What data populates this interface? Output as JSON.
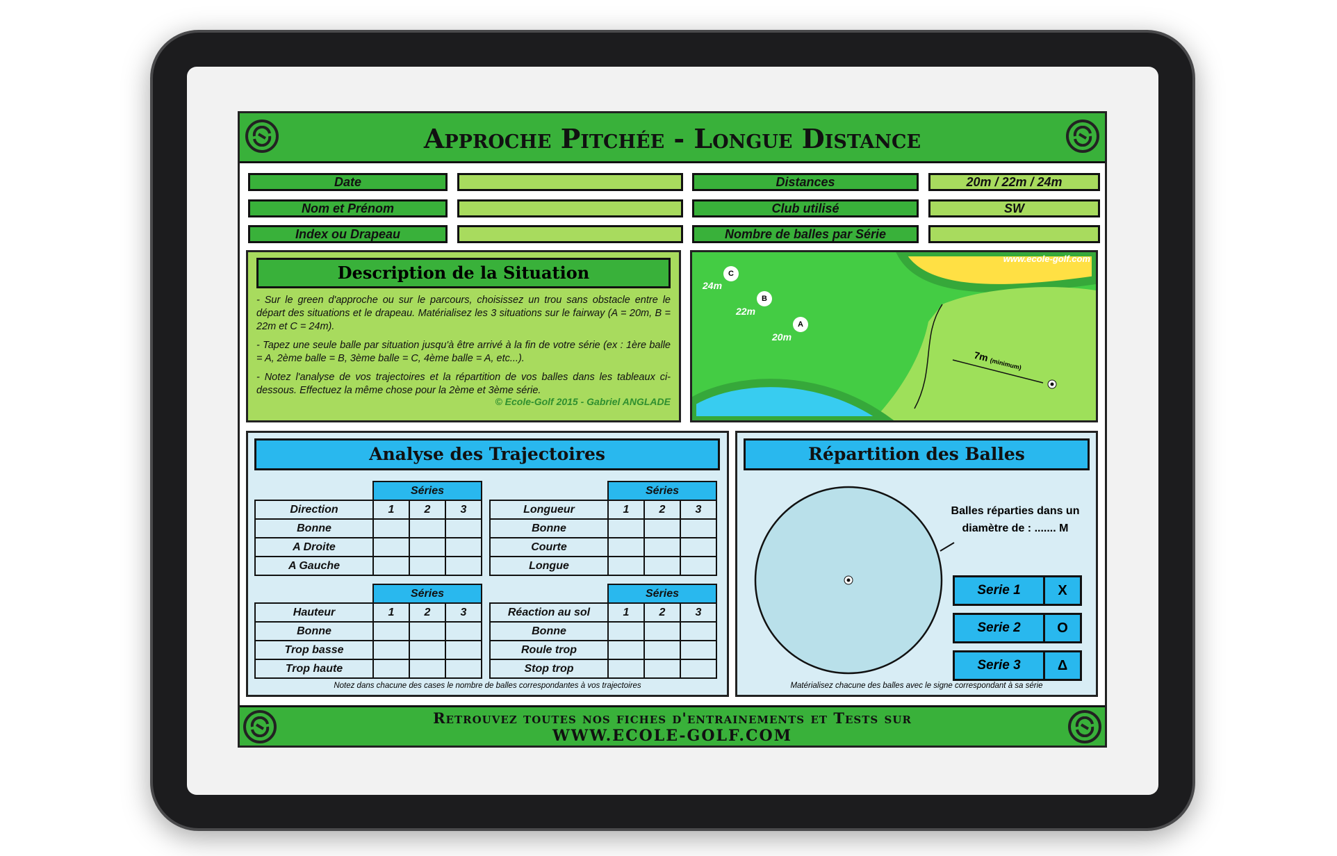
{
  "header": {
    "title": "Approche Pitchée - Longue Distance"
  },
  "info": [
    {
      "label": "Date",
      "value": "",
      "label2": "Distances",
      "value2": "20m / 22m / 24m"
    },
    {
      "label": "Nom et Prénom",
      "value": "",
      "label2": "Club utilisé",
      "value2": "SW"
    },
    {
      "label": "Index ou Drapeau",
      "value": "",
      "label2": "Nombre de balles par Série",
      "value2": ""
    }
  ],
  "description": {
    "title": "Description de la Situation",
    "paragraphs": [
      "- Sur le green d'approche ou sur le parcours, choisissez un trou sans obstacle entre le départ des situations et le drapeau. Matérialisez les 3 situations sur le fairway (A = 20m, B = 22m et C = 24m).",
      "- Tapez une seule balle par situation jusqu'à être arrivé à la fin de votre série (ex : 1ère balle = A, 2ème balle = B, 3ème balle = C, 4ème balle = A, etc...).",
      "- Notez l'analyse de vos trajectoires et la répartition de vos balles dans les tableaux ci-dessous. Effectuez la même chose pour la 2ème et 3ème série."
    ],
    "copyright": "© Ecole-Golf 2015 - Gabriel ANGLADE"
  },
  "map": {
    "watermark": "www.ecole-golf.com",
    "points": [
      {
        "letter": "C",
        "dist": "24m"
      },
      {
        "letter": "B",
        "dist": "22m"
      },
      {
        "letter": "A",
        "dist": "20m"
      }
    ],
    "distance": "7m",
    "distance_note": "(minimum)"
  },
  "analyse": {
    "title": "Analyse des Trajectoires",
    "series_label": "Séries",
    "cols": [
      "1",
      "2",
      "3"
    ],
    "tables": [
      {
        "header": "Direction",
        "rows": [
          "Bonne",
          "A Droite",
          "A Gauche"
        ]
      },
      {
        "header": "Longueur",
        "rows": [
          "Bonne",
          "Courte",
          "Longue"
        ]
      },
      {
        "header": "Hauteur",
        "rows": [
          "Bonne",
          "Trop basse",
          "Trop haute"
        ]
      },
      {
        "header": "Réaction au sol",
        "rows": [
          "Bonne",
          "Roule trop",
          "Stop trop"
        ]
      }
    ],
    "note": "Notez dans chacune des cases le nombre de balles correspondantes à vos trajectoires"
  },
  "repartition": {
    "title": "Répartition des Balles",
    "caption": "Balles réparties dans un diamètre de : ....... M",
    "series": [
      {
        "label": "Serie 1",
        "sign": "X"
      },
      {
        "label": "Serie 2",
        "sign": "O"
      },
      {
        "label": "Serie 3",
        "sign": "Δ"
      }
    ],
    "note": "Matérialisez chacune des balles avec le signe correspondant à sa série"
  },
  "footer": {
    "line1": "Retrouvez toutes nos fiches d'entrainements et Tests sur",
    "line2": "WWW.ECOLE-GOLF.COM"
  },
  "colors": {
    "green": "#39b13a",
    "light_green": "#a8db5e",
    "blue": "#29b8ee"
  }
}
